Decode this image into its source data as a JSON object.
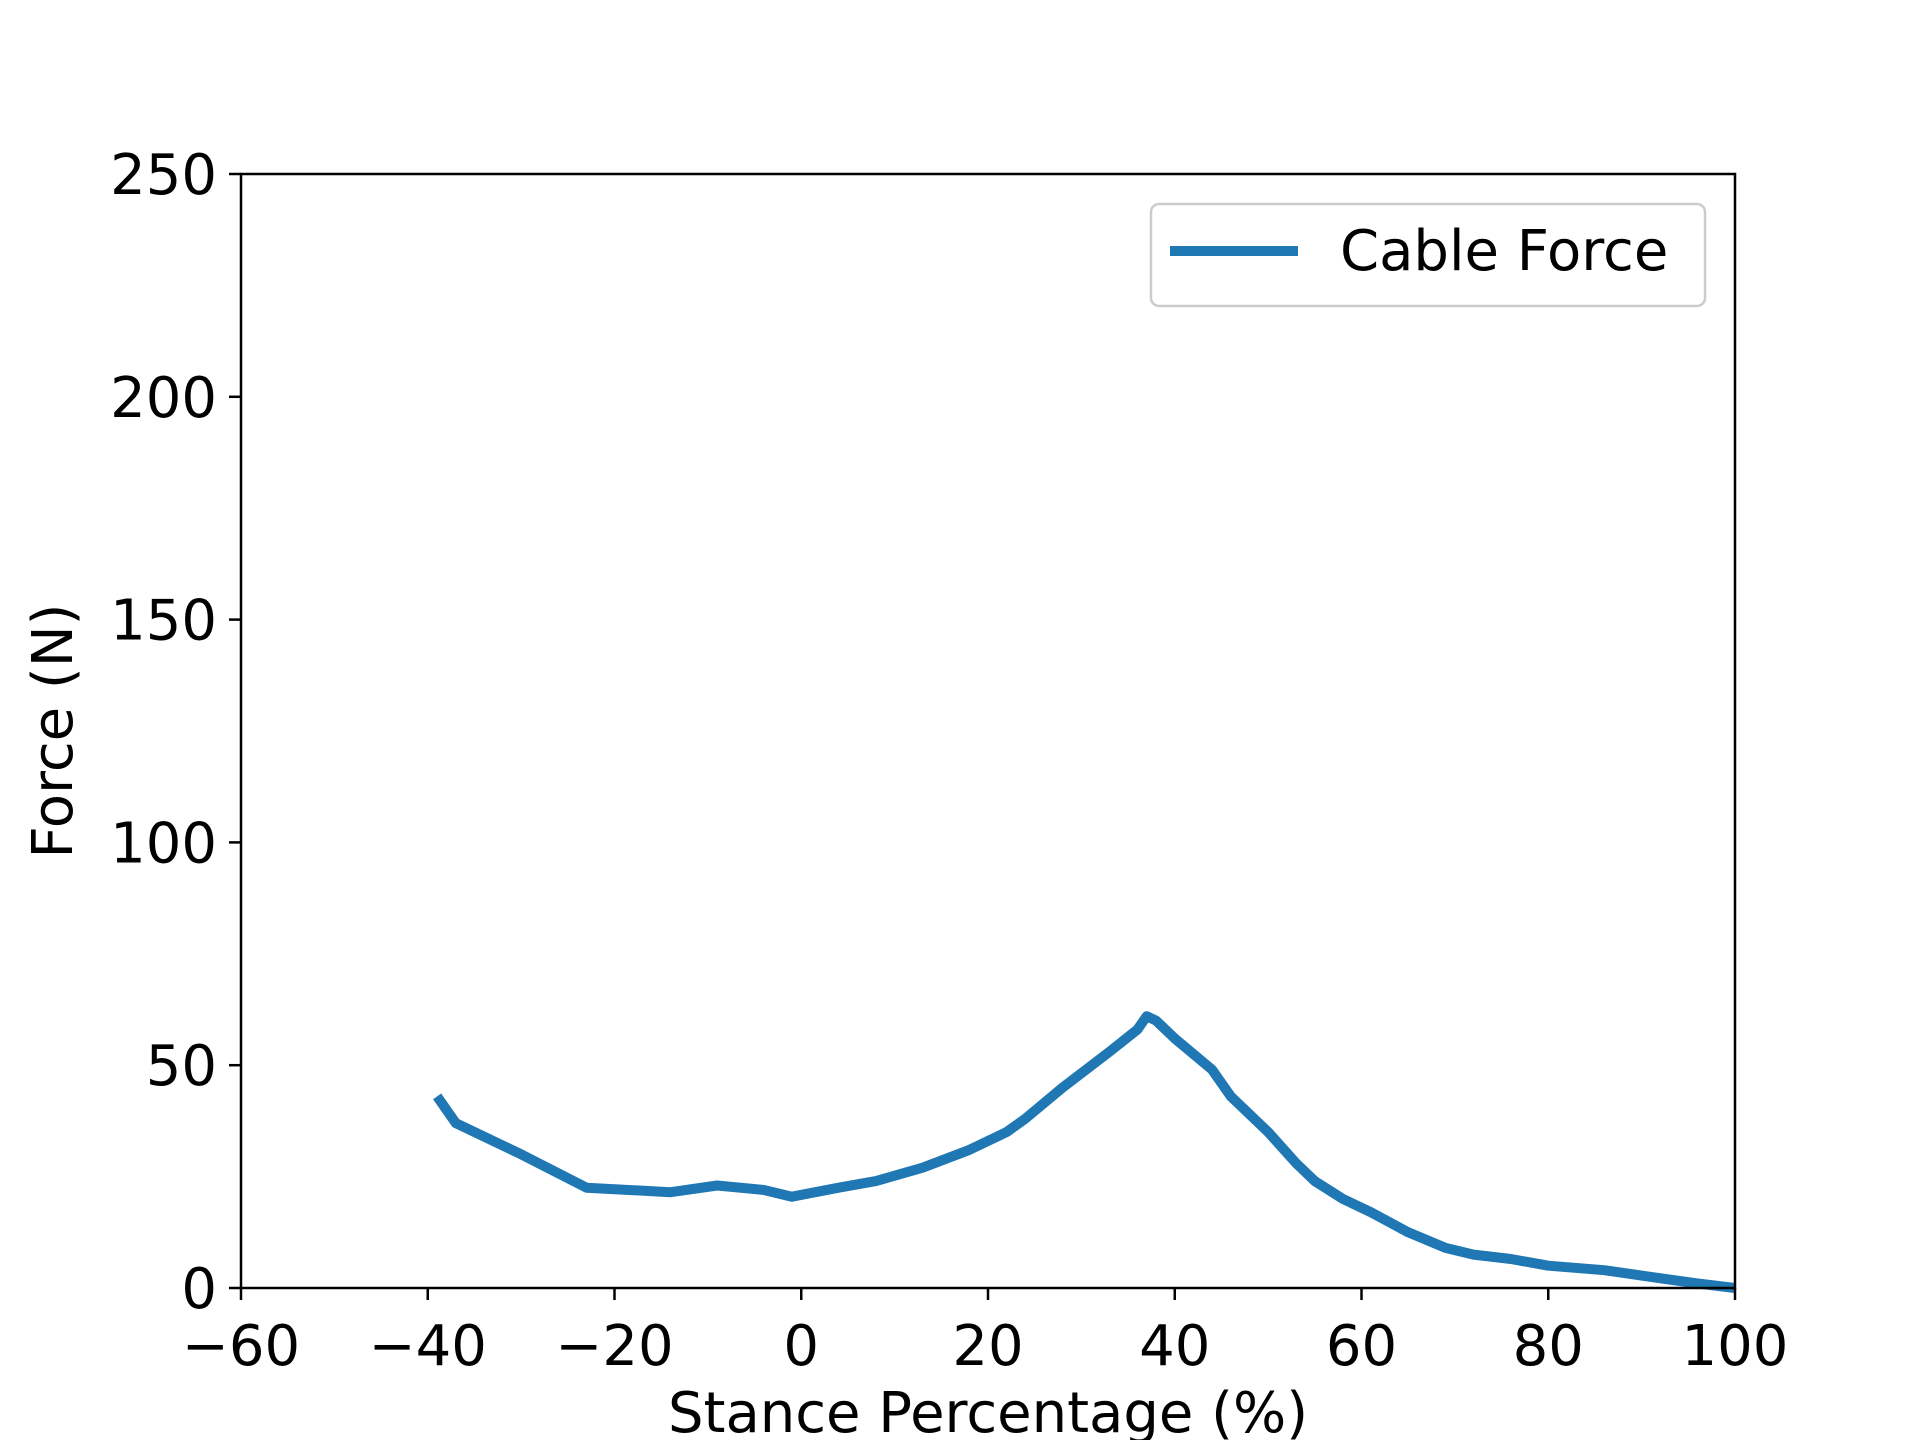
{
  "chart_data": {
    "type": "line",
    "title": "",
    "xlabel": "Stance Percentage (%)",
    "ylabel": "Force (N)",
    "xlim": [
      -60,
      100
    ],
    "ylim": [
      0,
      250
    ],
    "xticks": [
      -60,
      -40,
      -20,
      0,
      20,
      40,
      60,
      80,
      100
    ],
    "yticks": [
      0,
      50,
      100,
      150,
      200,
      250
    ],
    "xtick_labels": [
      "−60",
      "−40",
      "−20",
      "0",
      "20",
      "40",
      "60",
      "80",
      "100"
    ],
    "ytick_labels": [
      "0",
      "50",
      "100",
      "150",
      "200",
      "250"
    ],
    "grid": false,
    "legend": {
      "position": "top-right"
    },
    "series": [
      {
        "name": "Cable Force",
        "color": "#1f77b4",
        "x": [
          -39,
          -37,
          -30,
          -23,
          -14,
          -9,
          -4,
          -1,
          4,
          8,
          13,
          18,
          22,
          24,
          28,
          33,
          36,
          37,
          38,
          40,
          44,
          46,
          50,
          53,
          55,
          58,
          61,
          65,
          69,
          72,
          76,
          80,
          86,
          91,
          96,
          100
        ],
        "y": [
          43,
          37,
          30,
          22.5,
          21.5,
          23,
          22,
          20.5,
          22.5,
          24,
          27,
          31,
          35,
          38,
          45,
          53,
          58,
          61,
          60,
          56,
          49,
          43,
          35,
          28,
          24,
          20,
          17,
          12.5,
          9,
          7.5,
          6.5,
          5,
          4,
          2.5,
          1,
          0
        ]
      }
    ]
  }
}
